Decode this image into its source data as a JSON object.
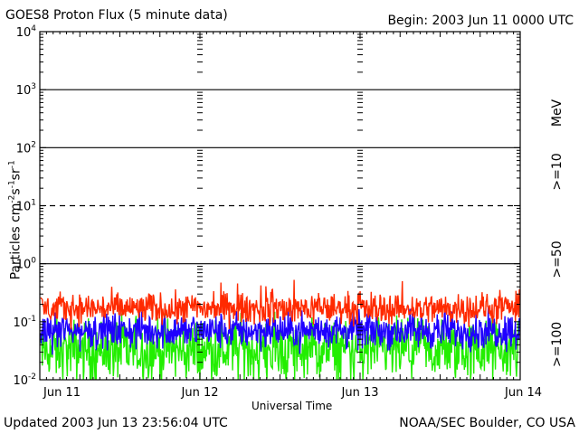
{
  "chart_data": {
    "type": "line",
    "title": "GOES8 Proton Flux (5 minute data)",
    "begin_label": "Begin: 2003 Jun 11 0000 UTC",
    "xlabel": "Universal Time",
    "ylabel": "Particles cm",
    "ylabel_parts": [
      "Particles cm",
      "-2",
      "s",
      "-1",
      "sr",
      "-1"
    ],
    "yscale": "log",
    "ylim": [
      0.01,
      10000
    ],
    "ytick_exponents": [
      -2,
      -1,
      0,
      1,
      2,
      3,
      4
    ],
    "ytick_base": "10",
    "x_ticks": [
      "Jun 11",
      "Jun 12",
      "Jun 13",
      "Jun 14"
    ],
    "x_range_days": [
      0,
      3
    ],
    "threshold_lines": [
      {
        "value": 1,
        "style": "solid"
      },
      {
        "value": 10,
        "style": "dashed"
      },
      {
        "value": 100,
        "style": "solid"
      },
      {
        "value": 1000,
        "style": "solid"
      }
    ],
    "series": [
      {
        "name": ">=10 MeV",
        "label": ">=10",
        "color": "#ff2a00",
        "typical": 0.17,
        "spread": 0.12,
        "peak": 0.6
      },
      {
        "name": ">=50 MeV",
        "label": ">=50",
        "color": "#1f00ff",
        "typical": 0.07,
        "spread": 0.14,
        "peak": 0.12
      },
      {
        "name": ">=100 MeV",
        "label": ">=100",
        "color": "#22ee00",
        "typical": 0.032,
        "spread": 0.24,
        "peak": 0.06
      }
    ],
    "units_label": "MeV"
  },
  "footer": {
    "updated": "Updated 2003 Jun 13 23:56:04 UTC",
    "credit": "NOAA/SEC Boulder, CO USA"
  },
  "colors": {
    "axis": "#000000",
    "background": "#ffffff"
  }
}
